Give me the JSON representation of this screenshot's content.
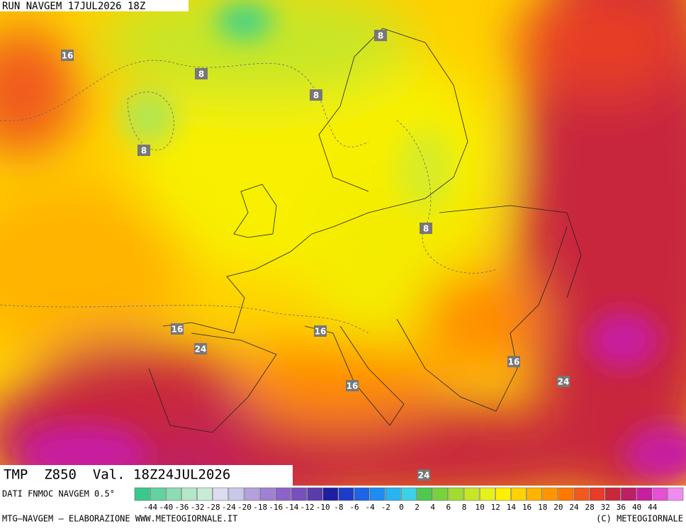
{
  "header": {
    "run": "RUN NAVGEM 17JUL2026 18Z"
  },
  "map": {
    "contour_labels": [
      16,
      8,
      8,
      8,
      8,
      8,
      16,
      24,
      16,
      16,
      16,
      24,
      24
    ]
  },
  "footer": {
    "product": "TMP  Z850  Val. 18Z24JUL2026",
    "source": "DATI FNMOC NAVGEM 0.5°",
    "credit": "MTG–NAVGEM – ELABORAZIONE WWW.METEOGIORNALE.IT",
    "copyright": "(C) METEOGIORNALE"
  },
  "colorbar": {
    "labels": [
      -44,
      -40,
      -36,
      -32,
      -28,
      -24,
      -20,
      -18,
      -16,
      -14,
      -12,
      -10,
      -8,
      -6,
      -4,
      -2,
      0,
      2,
      4,
      6,
      8,
      10,
      12,
      14,
      16,
      18,
      20,
      24,
      28,
      32,
      36,
      40,
      44
    ],
    "colors": [
      "#3cc88c",
      "#64d2a0",
      "#8cdcb4",
      "#b4e6c8",
      "#c8ebd7",
      "#dcdcf0",
      "#c8c8eb",
      "#b4a0dc",
      "#a080d2",
      "#8c64c8",
      "#7850be",
      "#5a3caa",
      "#1e1ea0",
      "#1e3cc8",
      "#1e64e6",
      "#1e8cf0",
      "#28b4f0",
      "#3cd2e6",
      "#50c850",
      "#78d23c",
      "#a0dc32",
      "#c8e628",
      "#e6f01e",
      "#fff000",
      "#ffd200",
      "#ffb400",
      "#ff9600",
      "#ff7800",
      "#f05a1e",
      "#e63c28",
      "#c8283c",
      "#be1e64",
      "#c81ea0",
      "#e650d2",
      "#f08cf0"
    ]
  }
}
